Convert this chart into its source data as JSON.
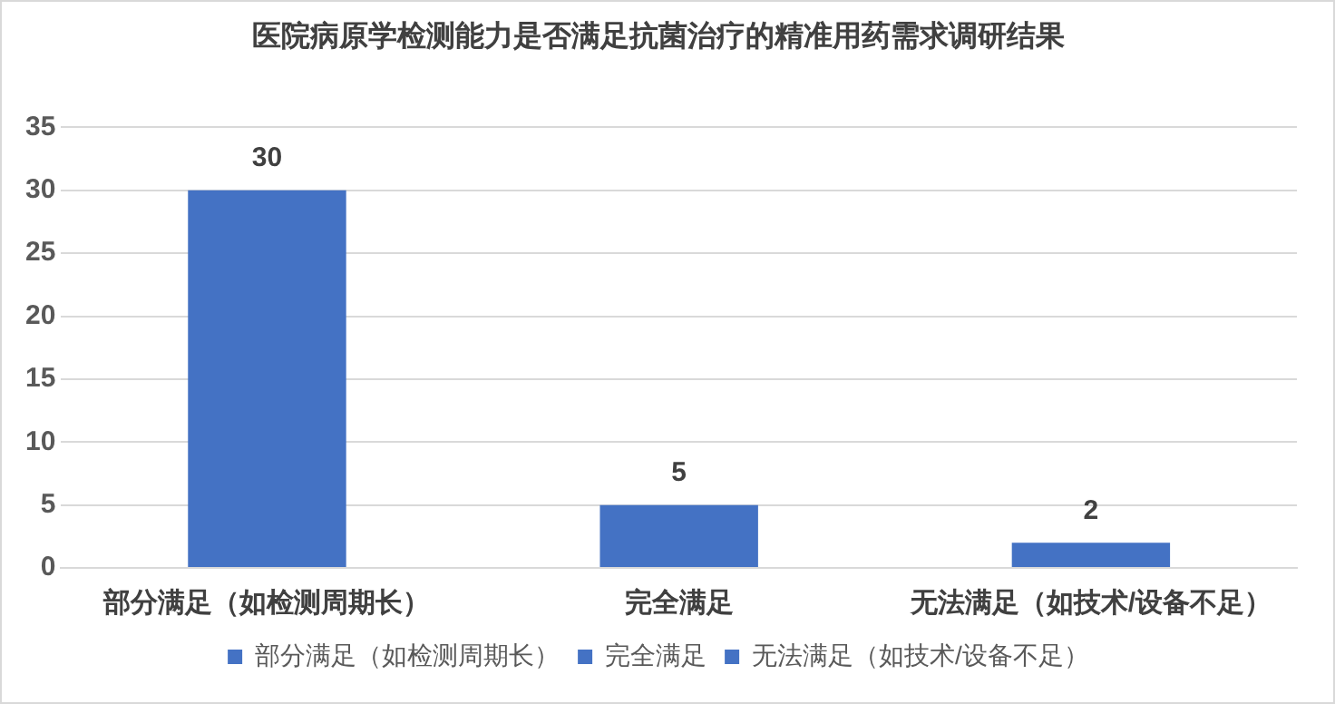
{
  "chart_data": {
    "type": "bar",
    "title": "医院病原学检测能力是否满足抗菌治疗的精准用药需求调研结果",
    "categories": [
      "部分满足（如检测周期长）",
      "完全满足",
      "无法满足（如技术/设备不足）"
    ],
    "series": [
      {
        "name": "部分满足（如检测周期长）",
        "color": "#4472c4",
        "values": [
          30,
          null,
          null
        ]
      },
      {
        "name": "完全满足",
        "color": "#4472c4",
        "values": [
          null,
          5,
          null
        ]
      },
      {
        "name": "无法满足（如技术/设备不足）",
        "color": "#4472c4",
        "values": [
          null,
          null,
          2
        ]
      }
    ],
    "ylim": [
      0,
      35
    ],
    "yticks": [
      0,
      5,
      10,
      15,
      20,
      25,
      30,
      35
    ],
    "grid": "y",
    "legend": "bottom",
    "data_labels": true
  }
}
